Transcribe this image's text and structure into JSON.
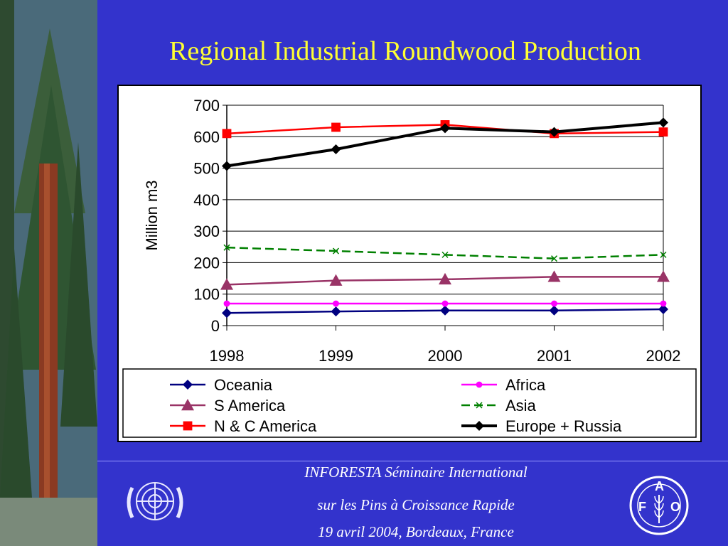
{
  "slide": {
    "title": "Regional Industrial Roundwood Production",
    "footer_line1": "INFORESTA Séminaire International",
    "footer_line2": "sur les Pins à Croissance Rapide",
    "footer_line3": "19 avril 2004, Bordeaux, France",
    "logo_left": "UN emblem",
    "logo_right_letters": [
      "F",
      "A",
      "O"
    ],
    "logo_right_motto": "FIAT PANIS"
  },
  "chart_data": {
    "type": "line",
    "title": "",
    "xlabel": "",
    "ylabel": "Million m3",
    "ylim": [
      0,
      700
    ],
    "yticks": [
      0,
      100,
      200,
      300,
      400,
      500,
      600,
      700
    ],
    "categories": [
      "1998",
      "1999",
      "2000",
      "2001",
      "2002"
    ],
    "grid": "horizontal",
    "legend_position": "bottom",
    "series": [
      {
        "name": "Oceania",
        "values": [
          40,
          45,
          48,
          48,
          52
        ],
        "color": "#000080",
        "marker": "diamond"
      },
      {
        "name": "Africa",
        "values": [
          70,
          70,
          70,
          70,
          70
        ],
        "color": "#ff00ff",
        "marker": "circle"
      },
      {
        "name": "S America",
        "values": [
          130,
          143,
          147,
          155,
          155
        ],
        "color": "#993366",
        "marker": "triangle"
      },
      {
        "name": "Asia",
        "values": [
          248,
          237,
          225,
          213,
          225
        ],
        "color": "#008000",
        "marker": "x",
        "dash": true
      },
      {
        "name": "N & C America",
        "values": [
          610,
          630,
          638,
          610,
          615
        ],
        "color": "#ff0000",
        "marker": "square"
      },
      {
        "name": "Europe + Russia",
        "values": [
          507,
          560,
          627,
          615,
          645
        ],
        "color": "#000000",
        "marker": "diamond",
        "thick": true
      }
    ]
  }
}
